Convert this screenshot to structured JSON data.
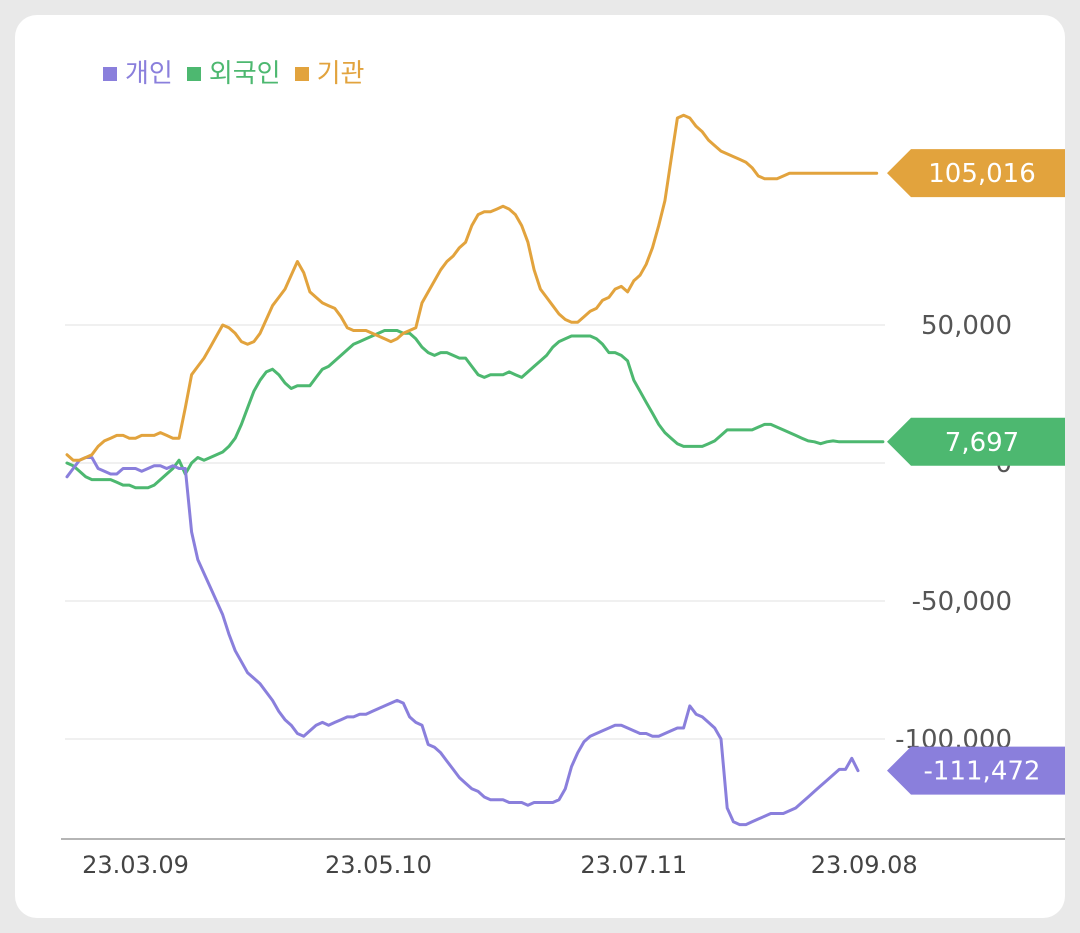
{
  "colors": {
    "individual": "#8a7fdc",
    "foreign": "#4db870",
    "institution": "#e2a33d",
    "grid": "#ececec",
    "axis": "#b5b5b5"
  },
  "legend": [
    {
      "key": "individual",
      "label": "개인"
    },
    {
      "key": "foreign",
      "label": "외국인"
    },
    {
      "key": "institution",
      "label": "기관"
    }
  ],
  "chart_data": {
    "type": "line",
    "ylim": [
      -130000,
      130000
    ],
    "y_ticks": [
      {
        "value": 50000,
        "label": "50,000"
      },
      {
        "value": 0,
        "label": "0"
      },
      {
        "value": -50000,
        "label": "-50,000"
      },
      {
        "value": -100000,
        "label": "-100,000"
      }
    ],
    "x_ticks": [
      {
        "index": 11,
        "label": "23.03.09"
      },
      {
        "index": 50,
        "label": "23.05.10"
      },
      {
        "index": 91,
        "label": "23.07.11"
      },
      {
        "index": 128,
        "label": "23.09.08"
      }
    ],
    "series": [
      {
        "key": "individual",
        "name": "개인",
        "last_label": "-111,472",
        "values": [
          -5000,
          -2000,
          1000,
          2000,
          2000,
          -2000,
          -3000,
          -4000,
          -4000,
          -2000,
          -2000,
          -2000,
          -3000,
          -2000,
          -1000,
          -1000,
          -2000,
          -1000,
          -2000,
          -2000,
          -25000,
          -35000,
          -40000,
          -45000,
          -50000,
          -55000,
          -62000,
          -68000,
          -72000,
          -76000,
          -78000,
          -80000,
          -83000,
          -86000,
          -90000,
          -93000,
          -95000,
          -98000,
          -99000,
          -97000,
          -95000,
          -94000,
          -95000,
          -94000,
          -93000,
          -92000,
          -92000,
          -91000,
          -91000,
          -90000,
          -89000,
          -88000,
          -87000,
          -86000,
          -87000,
          -92000,
          -94000,
          -95000,
          -102000,
          -103000,
          -105000,
          -108000,
          -111000,
          -114000,
          -116000,
          -118000,
          -119000,
          -121000,
          -122000,
          -122000,
          -122000,
          -123000,
          -123000,
          -123000,
          -124000,
          -123000,
          -123000,
          -123000,
          -123000,
          -122000,
          -118000,
          -110000,
          -105000,
          -101000,
          -99000,
          -98000,
          -97000,
          -96000,
          -95000,
          -95000,
          -96000,
          -97000,
          -98000,
          -98000,
          -99000,
          -99000,
          -98000,
          -97000,
          -96000,
          -96000,
          -88000,
          -91000,
          -92000,
          -94000,
          -96000,
          -100000,
          -125000,
          -130000,
          -131000,
          -131000,
          -130000,
          -129000,
          -128000,
          -127000,
          -127000,
          -127000,
          -126000,
          -125000,
          -123000,
          -121000,
          -119000,
          -117000,
          -115000,
          -113000,
          -111000,
          -111000,
          -107000,
          -111472
        ]
      },
      {
        "key": "foreign",
        "name": "외국인",
        "last_label": "7,697",
        "values": [
          0,
          -1000,
          -3000,
          -5000,
          -6000,
          -6000,
          -6000,
          -6000,
          -7000,
          -8000,
          -8000,
          -9000,
          -9000,
          -9000,
          -8000,
          -6000,
          -4000,
          -2000,
          1000,
          -4000,
          0,
          2000,
          1000,
          2000,
          3000,
          4000,
          6000,
          9000,
          14000,
          20000,
          26000,
          30000,
          33000,
          34000,
          32000,
          29000,
          27000,
          28000,
          28000,
          28000,
          31000,
          34000,
          35000,
          37000,
          39000,
          41000,
          43000,
          44000,
          45000,
          46000,
          47000,
          48000,
          48000,
          48000,
          47000,
          47000,
          45000,
          42000,
          40000,
          39000,
          40000,
          40000,
          39000,
          38000,
          38000,
          35000,
          32000,
          31000,
          32000,
          32000,
          32000,
          33000,
          32000,
          31000,
          33000,
          35000,
          37000,
          39000,
          42000,
          44000,
          45000,
          46000,
          46000,
          46000,
          46000,
          45000,
          43000,
          40000,
          40000,
          39000,
          37000,
          30000,
          26000,
          22000,
          18000,
          14000,
          11000,
          9000,
          7000,
          6000,
          6000,
          6000,
          6000,
          7000,
          8000,
          10000,
          12000,
          12000,
          12000,
          12000,
          12000,
          13000,
          14000,
          14000,
          13000,
          12000,
          11000,
          10000,
          9000,
          8000,
          7697,
          7000,
          7697,
          8000,
          7697,
          7697,
          7697,
          7697,
          7697,
          7697,
          7697,
          7697
        ]
      },
      {
        "key": "institution",
        "name": "기관",
        "last_label": "105,016",
        "values": [
          3000,
          1000,
          1000,
          2000,
          3000,
          6000,
          8000,
          9000,
          10000,
          10000,
          9000,
          9000,
          10000,
          10000,
          10000,
          11000,
          10000,
          9000,
          9000,
          20000,
          32000,
          35000,
          38000,
          42000,
          46000,
          50000,
          49000,
          47000,
          44000,
          43000,
          44000,
          47000,
          52000,
          57000,
          60000,
          63000,
          68000,
          73000,
          69000,
          62000,
          60000,
          58000,
          57000,
          56000,
          53000,
          49000,
          48000,
          48000,
          48000,
          47000,
          46000,
          45000,
          44000,
          45000,
          47000,
          48000,
          49000,
          58000,
          62000,
          66000,
          70000,
          73000,
          75000,
          78000,
          80000,
          86000,
          90000,
          91000,
          91000,
          92000,
          93000,
          92000,
          90000,
          86000,
          80000,
          70000,
          63000,
          60000,
          57000,
          54000,
          52000,
          51000,
          51000,
          53000,
          55000,
          56000,
          59000,
          60000,
          63000,
          64000,
          62000,
          66000,
          68000,
          72000,
          78000,
          86000,
          95000,
          110000,
          125000,
          126000,
          125000,
          122000,
          120000,
          117000,
          115000,
          113000,
          112000,
          111000,
          110000,
          109000,
          107000,
          104000,
          103000,
          103000,
          103000,
          104000,
          105016,
          105016,
          105016,
          105016,
          105016,
          105016,
          105016,
          105016,
          105016,
          105016,
          105016,
          105016,
          105016,
          105016,
          105016
        ]
      }
    ]
  }
}
